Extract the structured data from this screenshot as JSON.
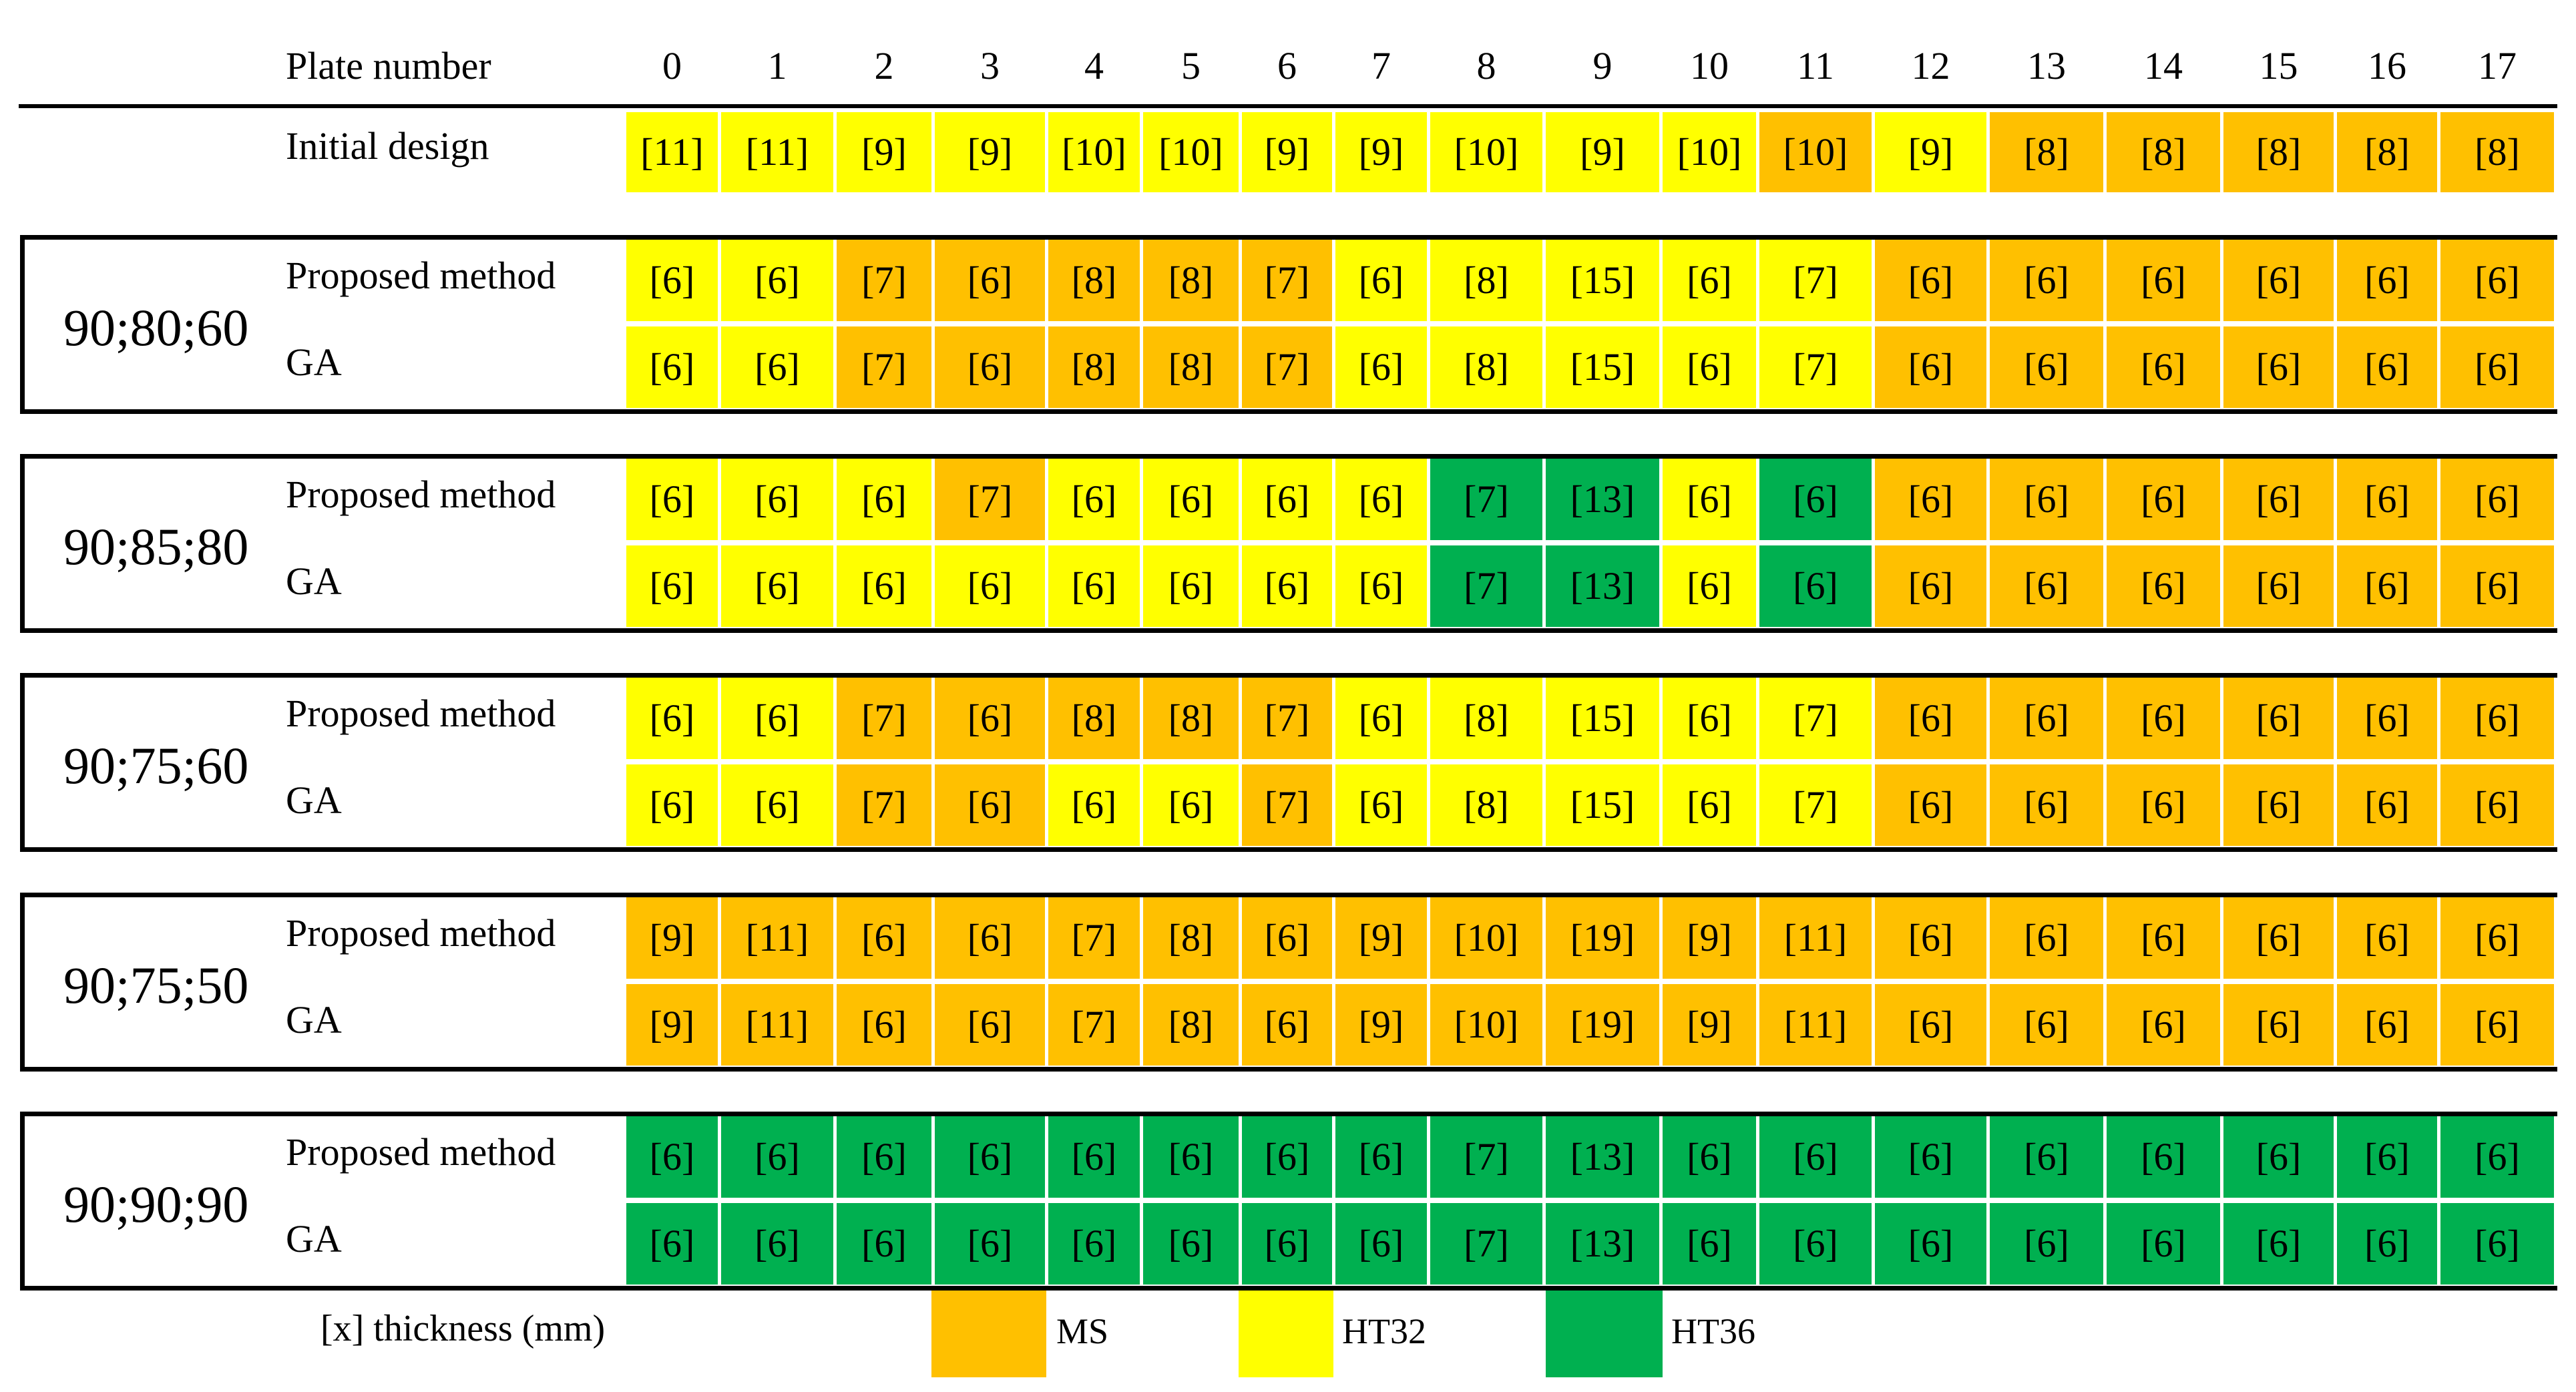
{
  "header": {
    "label": "Plate number",
    "plates": [
      "0",
      "1",
      "2",
      "3",
      "4",
      "5",
      "6",
      "7",
      "8",
      "9",
      "10",
      "11",
      "12",
      "13",
      "14",
      "15",
      "16",
      "17"
    ]
  },
  "colors": {
    "MS": "#FFC000",
    "HT32": "#FFFF00",
    "HT36": "#00B050"
  },
  "initial": {
    "label": "Initial design",
    "cells": [
      [
        "[11]",
        "HT32"
      ],
      [
        "[11]",
        "HT32"
      ],
      [
        "[9]",
        "HT32"
      ],
      [
        "[9]",
        "HT32"
      ],
      [
        "[10]",
        "HT32"
      ],
      [
        "[10]",
        "HT32"
      ],
      [
        "[9]",
        "HT32"
      ],
      [
        "[9]",
        "HT32"
      ],
      [
        "[10]",
        "HT32"
      ],
      [
        "[9]",
        "HT32"
      ],
      [
        "[10]",
        "HT32"
      ],
      [
        "[10]",
        "MS"
      ],
      [
        "[9]",
        "HT32"
      ],
      [
        "[8]",
        "MS"
      ],
      [
        "[8]",
        "MS"
      ],
      [
        "[8]",
        "MS"
      ],
      [
        "[8]",
        "MS"
      ],
      [
        "[8]",
        "MS"
      ]
    ]
  },
  "groups": [
    {
      "name": "90;80;60",
      "rows": [
        {
          "label": "Proposed method",
          "cells": [
            [
              "[6]",
              "HT32"
            ],
            [
              "[6]",
              "HT32"
            ],
            [
              "[7]",
              "MS"
            ],
            [
              "[6]",
              "MS"
            ],
            [
              "[8]",
              "MS"
            ],
            [
              "[8]",
              "MS"
            ],
            [
              "[7]",
              "MS"
            ],
            [
              "[6]",
              "HT32"
            ],
            [
              "[8]",
              "HT32"
            ],
            [
              "[15]",
              "HT32"
            ],
            [
              "[6]",
              "HT32"
            ],
            [
              "[7]",
              "HT32"
            ],
            [
              "[6]",
              "MS"
            ],
            [
              "[6]",
              "MS"
            ],
            [
              "[6]",
              "MS"
            ],
            [
              "[6]",
              "MS"
            ],
            [
              "[6]",
              "MS"
            ],
            [
              "[6]",
              "MS"
            ]
          ]
        },
        {
          "label": "GA",
          "cells": [
            [
              "[6]",
              "HT32"
            ],
            [
              "[6]",
              "HT32"
            ],
            [
              "[7]",
              "MS"
            ],
            [
              "[6]",
              "MS"
            ],
            [
              "[8]",
              "MS"
            ],
            [
              "[8]",
              "MS"
            ],
            [
              "[7]",
              "MS"
            ],
            [
              "[6]",
              "HT32"
            ],
            [
              "[8]",
              "HT32"
            ],
            [
              "[15]",
              "HT32"
            ],
            [
              "[6]",
              "HT32"
            ],
            [
              "[7]",
              "HT32"
            ],
            [
              "[6]",
              "MS"
            ],
            [
              "[6]",
              "MS"
            ],
            [
              "[6]",
              "MS"
            ],
            [
              "[6]",
              "MS"
            ],
            [
              "[6]",
              "MS"
            ],
            [
              "[6]",
              "MS"
            ]
          ]
        }
      ]
    },
    {
      "name": "90;85;80",
      "rows": [
        {
          "label": "Proposed method",
          "cells": [
            [
              "[6]",
              "HT32"
            ],
            [
              "[6]",
              "HT32"
            ],
            [
              "[6]",
              "HT32"
            ],
            [
              "[7]",
              "MS"
            ],
            [
              "[6]",
              "HT32"
            ],
            [
              "[6]",
              "HT32"
            ],
            [
              "[6]",
              "HT32"
            ],
            [
              "[6]",
              "HT32"
            ],
            [
              "[7]",
              "HT36"
            ],
            [
              "[13]",
              "HT36"
            ],
            [
              "[6]",
              "HT32"
            ],
            [
              "[6]",
              "HT36"
            ],
            [
              "[6]",
              "MS"
            ],
            [
              "[6]",
              "MS"
            ],
            [
              "[6]",
              "MS"
            ],
            [
              "[6]",
              "MS"
            ],
            [
              "[6]",
              "MS"
            ],
            [
              "[6]",
              "MS"
            ]
          ]
        },
        {
          "label": "GA",
          "cells": [
            [
              "[6]",
              "HT32"
            ],
            [
              "[6]",
              "HT32"
            ],
            [
              "[6]",
              "HT32"
            ],
            [
              "[6]",
              "HT32"
            ],
            [
              "[6]",
              "HT32"
            ],
            [
              "[6]",
              "HT32"
            ],
            [
              "[6]",
              "HT32"
            ],
            [
              "[6]",
              "HT32"
            ],
            [
              "[7]",
              "HT36"
            ],
            [
              "[13]",
              "HT36"
            ],
            [
              "[6]",
              "HT32"
            ],
            [
              "[6]",
              "HT36"
            ],
            [
              "[6]",
              "MS"
            ],
            [
              "[6]",
              "MS"
            ],
            [
              "[6]",
              "MS"
            ],
            [
              "[6]",
              "MS"
            ],
            [
              "[6]",
              "MS"
            ],
            [
              "[6]",
              "MS"
            ]
          ]
        }
      ]
    },
    {
      "name": "90;75;60",
      "rows": [
        {
          "label": "Proposed method",
          "cells": [
            [
              "[6]",
              "HT32"
            ],
            [
              "[6]",
              "HT32"
            ],
            [
              "[7]",
              "MS"
            ],
            [
              "[6]",
              "MS"
            ],
            [
              "[8]",
              "MS"
            ],
            [
              "[8]",
              "MS"
            ],
            [
              "[7]",
              "MS"
            ],
            [
              "[6]",
              "HT32"
            ],
            [
              "[8]",
              "HT32"
            ],
            [
              "[15]",
              "HT32"
            ],
            [
              "[6]",
              "HT32"
            ],
            [
              "[7]",
              "HT32"
            ],
            [
              "[6]",
              "MS"
            ],
            [
              "[6]",
              "MS"
            ],
            [
              "[6]",
              "MS"
            ],
            [
              "[6]",
              "MS"
            ],
            [
              "[6]",
              "MS"
            ],
            [
              "[6]",
              "MS"
            ]
          ]
        },
        {
          "label": "GA",
          "cells": [
            [
              "[6]",
              "HT32"
            ],
            [
              "[6]",
              "HT32"
            ],
            [
              "[7]",
              "MS"
            ],
            [
              "[6]",
              "MS"
            ],
            [
              "[6]",
              "HT32"
            ],
            [
              "[6]",
              "HT32"
            ],
            [
              "[7]",
              "MS"
            ],
            [
              "[6]",
              "HT32"
            ],
            [
              "[8]",
              "HT32"
            ],
            [
              "[15]",
              "HT32"
            ],
            [
              "[6]",
              "HT32"
            ],
            [
              "[7]",
              "HT32"
            ],
            [
              "[6]",
              "MS"
            ],
            [
              "[6]",
              "MS"
            ],
            [
              "[6]",
              "MS"
            ],
            [
              "[6]",
              "MS"
            ],
            [
              "[6]",
              "MS"
            ],
            [
              "[6]",
              "MS"
            ]
          ]
        }
      ]
    },
    {
      "name": "90;75;50",
      "rows": [
        {
          "label": "Proposed method",
          "cells": [
            [
              "[9]",
              "MS"
            ],
            [
              "[11]",
              "MS"
            ],
            [
              "[6]",
              "MS"
            ],
            [
              "[6]",
              "MS"
            ],
            [
              "[7]",
              "MS"
            ],
            [
              "[8]",
              "MS"
            ],
            [
              "[6]",
              "MS"
            ],
            [
              "[9]",
              "MS"
            ],
            [
              "[10]",
              "MS"
            ],
            [
              "[19]",
              "MS"
            ],
            [
              "[9]",
              "MS"
            ],
            [
              "[11]",
              "MS"
            ],
            [
              "[6]",
              "MS"
            ],
            [
              "[6]",
              "MS"
            ],
            [
              "[6]",
              "MS"
            ],
            [
              "[6]",
              "MS"
            ],
            [
              "[6]",
              "MS"
            ],
            [
              "[6]",
              "MS"
            ]
          ]
        },
        {
          "label": "GA",
          "cells": [
            [
              "[9]",
              "MS"
            ],
            [
              "[11]",
              "MS"
            ],
            [
              "[6]",
              "MS"
            ],
            [
              "[6]",
              "MS"
            ],
            [
              "[7]",
              "MS"
            ],
            [
              "[8]",
              "MS"
            ],
            [
              "[6]",
              "MS"
            ],
            [
              "[9]",
              "MS"
            ],
            [
              "[10]",
              "MS"
            ],
            [
              "[19]",
              "MS"
            ],
            [
              "[9]",
              "MS"
            ],
            [
              "[11]",
              "MS"
            ],
            [
              "[6]",
              "MS"
            ],
            [
              "[6]",
              "MS"
            ],
            [
              "[6]",
              "MS"
            ],
            [
              "[6]",
              "MS"
            ],
            [
              "[6]",
              "MS"
            ],
            [
              "[6]",
              "MS"
            ]
          ]
        }
      ]
    },
    {
      "name": "90;90;90",
      "rows": [
        {
          "label": "Proposed method",
          "cells": [
            [
              "[6]",
              "HT36"
            ],
            [
              "[6]",
              "HT36"
            ],
            [
              "[6]",
              "HT36"
            ],
            [
              "[6]",
              "HT36"
            ],
            [
              "[6]",
              "HT36"
            ],
            [
              "[6]",
              "HT36"
            ],
            [
              "[6]",
              "HT36"
            ],
            [
              "[6]",
              "HT36"
            ],
            [
              "[7]",
              "HT36"
            ],
            [
              "[13]",
              "HT36"
            ],
            [
              "[6]",
              "HT36"
            ],
            [
              "[6]",
              "HT36"
            ],
            [
              "[6]",
              "HT36"
            ],
            [
              "[6]",
              "HT36"
            ],
            [
              "[6]",
              "HT36"
            ],
            [
              "[6]",
              "HT36"
            ],
            [
              "[6]",
              "HT36"
            ],
            [
              "[6]",
              "HT36"
            ]
          ]
        },
        {
          "label": "GA",
          "cells": [
            [
              "[6]",
              "HT36"
            ],
            [
              "[6]",
              "HT36"
            ],
            [
              "[6]",
              "HT36"
            ],
            [
              "[6]",
              "HT36"
            ],
            [
              "[6]",
              "HT36"
            ],
            [
              "[6]",
              "HT36"
            ],
            [
              "[6]",
              "HT36"
            ],
            [
              "[6]",
              "HT36"
            ],
            [
              "[7]",
              "HT36"
            ],
            [
              "[13]",
              "HT36"
            ],
            [
              "[6]",
              "HT36"
            ],
            [
              "[6]",
              "HT36"
            ],
            [
              "[6]",
              "HT36"
            ],
            [
              "[6]",
              "HT36"
            ],
            [
              "[6]",
              "HT36"
            ],
            [
              "[6]",
              "HT36"
            ],
            [
              "[6]",
              "HT36"
            ],
            [
              "[6]",
              "HT36"
            ]
          ]
        }
      ]
    }
  ],
  "legend": {
    "note": "[x] thickness (mm)",
    "items": [
      {
        "swatch": "MS",
        "label": "MS"
      },
      {
        "swatch": "HT32",
        "label": "HT32"
      },
      {
        "swatch": "HT36",
        "label": "HT36"
      }
    ]
  }
}
